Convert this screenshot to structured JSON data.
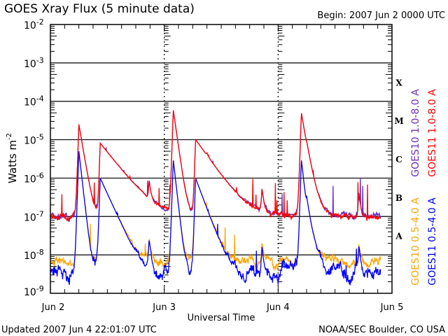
{
  "chart_data": {
    "type": "line",
    "title": "GOES Xray Flux (5 minute data)",
    "begin_label": "Begin:  2007 Jun 2 0000 UTC",
    "xlabel": "Universal Time",
    "ylabel": "Watts m",
    "ylabel_sup": "-2",
    "x_range_hours": [
      0,
      72
    ],
    "x_ticks": [
      {
        "hour": 0,
        "label": "Jun 2"
      },
      {
        "hour": 24,
        "label": "Jun 3"
      },
      {
        "hour": 48,
        "label": "Jun 4"
      },
      {
        "hour": 72,
        "label": "Jun 5"
      }
    ],
    "y_scale": "log",
    "ylim": [
      1e-09,
      0.01
    ],
    "y_ticks": [
      {
        "exp": -2,
        "label": "10",
        "sup": "-2"
      },
      {
        "exp": -3,
        "label": "10",
        "sup": "-3"
      },
      {
        "exp": -4,
        "label": "10",
        "sup": "-4"
      },
      {
        "exp": -5,
        "label": "10",
        "sup": "-5"
      },
      {
        "exp": -6,
        "label": "10",
        "sup": "-6"
      },
      {
        "exp": -7,
        "label": "10",
        "sup": "-7"
      },
      {
        "exp": -8,
        "label": "10",
        "sup": "-8"
      },
      {
        "exp": -9,
        "label": "10",
        "sup": "-9"
      }
    ],
    "flare_classes": [
      {
        "label": "X",
        "exp": -3.5
      },
      {
        "label": "M",
        "exp": -4.5
      },
      {
        "label": "C",
        "exp": -5.5
      },
      {
        "label": "B",
        "exp": -6.5
      },
      {
        "label": "A",
        "exp": -7.5
      }
    ],
    "data_end_hour": 69.6,
    "series": [
      {
        "name": "GOES10 1.0-8.0 A",
        "color": "#6a2fc0",
        "baseline": 1.05e-07,
        "noise": 0.08,
        "seed": 3,
        "flares": [
          [
            6.0,
            2.5e-05,
            0.6
          ],
          [
            10.5,
            8e-06,
            2.8
          ],
          [
            20.8,
            6e-07,
            0.3
          ],
          [
            25.9,
            6e-05,
            0.5
          ],
          [
            30.6,
            1e-05,
            2.5
          ],
          [
            33.0,
            6e-07,
            0.3
          ],
          [
            44.6,
            4e-07,
            0.3
          ],
          [
            52.9,
            5e-05,
            0.6
          ],
          [
            54.0,
            1.2e-06,
            1.2
          ],
          [
            65.0,
            3e-07,
            0.3
          ]
        ]
      },
      {
        "name": "GOES11 1.0-8.0 A",
        "color": "#ff0000",
        "baseline": 1e-07,
        "noise": 0.08,
        "seed": 7,
        "flares": [
          [
            6.0,
            2.5e-05,
            0.6
          ],
          [
            10.5,
            8e-06,
            2.8
          ],
          [
            20.8,
            6e-07,
            0.3
          ],
          [
            25.9,
            6e-05,
            0.5
          ],
          [
            30.6,
            1e-05,
            2.5
          ],
          [
            33.0,
            6e-07,
            0.3
          ],
          [
            44.6,
            4e-07,
            0.3
          ],
          [
            52.9,
            5e-05,
            0.6
          ],
          [
            54.0,
            1.2e-06,
            1.2
          ],
          [
            65.0,
            3e-07,
            0.3
          ]
        ]
      },
      {
        "name": "GOES10 0.5-4.0 A",
        "color": "#ffa500",
        "baseline": 6.5e-09,
        "noise": 0.12,
        "seed": 11,
        "flares": [
          [
            6.0,
            5e-06,
            0.4
          ],
          [
            10.5,
            1e-06,
            1.6
          ],
          [
            20.8,
            2e-08,
            0.3
          ],
          [
            25.9,
            3e-06,
            0.4
          ],
          [
            30.6,
            1e-06,
            1.3
          ],
          [
            44.6,
            1.5e-08,
            0.3
          ],
          [
            52.9,
            3e-06,
            0.4
          ],
          [
            54.0,
            1.5e-07,
            0.8
          ],
          [
            65.0,
            1.2e-08,
            0.3
          ]
        ]
      },
      {
        "name": "GOES11 0.5-4.0 A",
        "color": "#0000ff",
        "baseline": 3.8e-09,
        "noise": 0.18,
        "seed": 19,
        "flares": [
          [
            6.0,
            5e-06,
            0.4
          ],
          [
            10.5,
            1e-06,
            1.6
          ],
          [
            20.8,
            2e-08,
            0.3
          ],
          [
            25.9,
            3e-06,
            0.4
          ],
          [
            30.6,
            1e-06,
            1.3
          ],
          [
            44.6,
            1.5e-08,
            0.3
          ],
          [
            52.9,
            3e-06,
            0.4
          ],
          [
            54.0,
            1.5e-07,
            0.8
          ],
          [
            65.0,
            1.2e-08,
            0.3
          ]
        ]
      }
    ]
  },
  "footer": {
    "updated": "Updated 2007 Jun  4 22:01:07 UTC",
    "source": "NOAA/SEC Boulder, CO USA"
  }
}
